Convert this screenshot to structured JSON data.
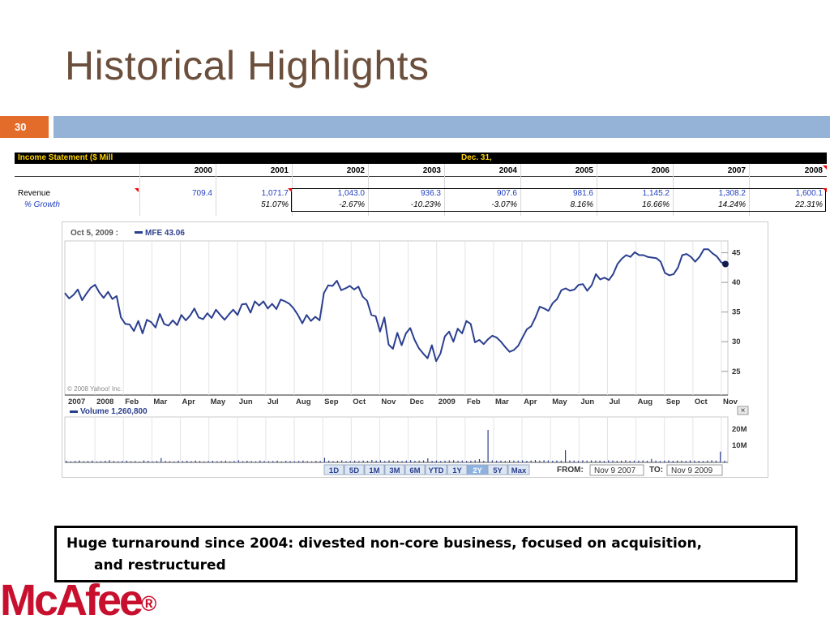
{
  "slide": {
    "title": "Historical Highlights",
    "page_number": "30"
  },
  "income_statement": {
    "header_label": "Income Statement ($ Mill",
    "period_label": "Dec. 31,",
    "years": [
      "2000",
      "2001",
      "2002",
      "2003",
      "2004",
      "2005",
      "2006",
      "2007",
      "2008"
    ],
    "revenue_label": "Revenue",
    "revenue": [
      "709.4",
      "1,071.7",
      "1,043.0",
      "936.3",
      "907.6",
      "981.6",
      "1,145.2",
      "1,308.2",
      "1,600.1"
    ],
    "growth_label": "% Growth",
    "growth": [
      "",
      "51.07%",
      "-2.67%",
      "-10.23%",
      "-3.07%",
      "8.16%",
      "16.66%",
      "14.24%",
      "22.31%"
    ]
  },
  "chart_data": {
    "type": "line",
    "title": "Oct 5, 2009 :",
    "series": [
      {
        "name": "MFE 43.06",
        "color": "#2b3f8f"
      }
    ],
    "price_series": {
      "x_start": "2007-11-09",
      "x_end": "2009-11-09",
      "y": [
        38.2,
        37.3,
        37.9,
        38.8,
        37.0,
        38.1,
        39.1,
        39.6,
        38.3,
        37.4,
        38.4,
        37.2,
        37.7,
        34.1,
        33.0,
        32.9,
        31.8,
        33.5,
        31.4,
        33.7,
        33.3,
        32.4,
        34.7,
        33.0,
        32.7,
        33.6,
        32.8,
        34.5,
        33.6,
        34.4,
        35.6,
        34.1,
        33.8,
        34.8,
        34.0,
        35.4,
        34.5,
        33.7,
        34.6,
        35.4,
        34.5,
        36.3,
        36.4,
        34.9,
        36.8,
        36.1,
        36.8,
        35.6,
        36.4,
        35.5,
        37.1,
        36.8,
        36.4,
        35.6,
        34.5,
        33.1,
        34.5,
        33.5,
        34.2,
        33.6,
        38.2,
        39.5,
        39.4,
        40.3,
        38.7,
        39.0,
        39.4,
        38.8,
        39.3,
        37.6,
        36.9,
        34.5,
        34.3,
        31.7,
        34.1,
        29.5,
        28.8,
        31.5,
        29.4,
        31.4,
        32.3,
        30.3,
        28.9,
        28.0,
        27.2,
        29.4,
        26.7,
        28.0,
        30.9,
        31.7,
        30.0,
        32.2,
        31.4,
        33.5,
        33.0,
        29.9,
        30.3,
        29.6,
        30.4,
        31.0,
        30.7,
        30.0,
        29.1,
        28.3,
        28.6,
        29.3,
        30.7,
        32.1,
        32.6,
        34.1,
        35.9,
        35.6,
        35.2,
        36.5,
        37.2,
        38.7,
        39.0,
        38.6,
        38.8,
        39.6,
        39.7,
        38.6,
        39.5,
        41.4,
        40.5,
        40.8,
        40.4,
        41.4,
        43.1,
        44.0,
        44.6,
        44.3,
        45.1,
        44.6,
        44.6,
        44.3,
        44.2,
        44.1,
        43.5,
        41.6,
        41.2,
        41.4,
        42.5,
        44.6,
        44.8,
        44.3,
        43.5,
        44.3,
        45.6,
        45.6,
        44.9,
        44.4,
        43.4,
        43.1
      ],
      "x_labels": [
        "2007",
        "2008",
        "Feb",
        "Mar",
        "Apr",
        "May",
        "Jun",
        "Jul",
        "Aug",
        "Sep",
        "Oct",
        "Nov",
        "Dec",
        "2009",
        "Feb",
        "Mar",
        "Apr",
        "May",
        "Jun",
        "Jul",
        "Aug",
        "Sep",
        "Oct",
        "Nov"
      ],
      "y_ticks": [
        25,
        30,
        35,
        40,
        45
      ],
      "ylim": [
        21,
        47
      ],
      "credit": "© 2008 Yahoo! Inc."
    },
    "volume_series": {
      "name": "Volume 1,260,800",
      "y_ticks": [
        "10M",
        "20M"
      ],
      "values": [
        1.2,
        0.8,
        1.1,
        1.4,
        0.9,
        1.0,
        1.3,
        0.7,
        0.9,
        1.2,
        1.6,
        1.0,
        0.8,
        1.1,
        1.3,
        0.9,
        1.0,
        0.6,
        1.5,
        1.2,
        0.8,
        1.0,
        3.2,
        1.1,
        0.9,
        0.7,
        1.3,
        1.0,
        1.2,
        0.9,
        1.4,
        1.1,
        0.8,
        1.0,
        1.2,
        0.9,
        1.1,
        1.3,
        0.8,
        1.0,
        1.6,
        0.9,
        1.2,
        1.0,
        0.8,
        1.4,
        1.1,
        0.9,
        1.0,
        1.3,
        0.7,
        1.2,
        1.0,
        0.9,
        1.1,
        1.4,
        1.0,
        0.8,
        1.2,
        1.1,
        3.5,
        1.3,
        1.0,
        1.2,
        1.5,
        0.9,
        1.1,
        1.3,
        1.0,
        1.4,
        1.2,
        1.8,
        1.3,
        1.6,
        1.1,
        1.5,
        1.3,
        1.2,
        1.0,
        1.4,
        1.7,
        1.2,
        1.3,
        1.5,
        3.0,
        1.2,
        1.4,
        1.1,
        1.3,
        1.5,
        1.6,
        1.2,
        1.4,
        1.1,
        1.3,
        1.6,
        2.4,
        1.2,
        24.0,
        1.5,
        1.3,
        1.4,
        1.2,
        1.6,
        1.4,
        1.3,
        1.5,
        1.2,
        1.4,
        1.8,
        1.3,
        1.6,
        1.5,
        1.2,
        1.4,
        1.3,
        9.0,
        1.5,
        1.4,
        1.2,
        1.6,
        1.3,
        1.5,
        1.4,
        1.3,
        1.1,
        1.5,
        1.4,
        1.2,
        1.3,
        1.6,
        1.2,
        1.4,
        1.3,
        1.5,
        1.2,
        2.6,
        1.4,
        1.1,
        1.3,
        1.5,
        1.2,
        1.4,
        1.3,
        1.1,
        1.5,
        1.3,
        1.2,
        1.0,
        1.4,
        1.6,
        1.3,
        8.0,
        1.3
      ]
    },
    "range_buttons": [
      "1D",
      "5D",
      "1M",
      "3M",
      "6M",
      "YTD",
      "1Y",
      "2Y",
      "5Y",
      "Max"
    ],
    "selected_range": "2Y",
    "from_label": "FROM:",
    "from_value": "Nov 9 2007",
    "to_label": "TO:",
    "to_value": "Nov 9 2009",
    "close_button": "×"
  },
  "callout": {
    "line1": "Huge turnaround since 2004: divested non-core business, focused on acquisition,",
    "line2": "and restructured"
  },
  "logo": {
    "text": "McAfee",
    "mark": "®",
    "color": "#c8102e"
  },
  "colors": {
    "title": "#6b4f3c",
    "accent_orange": "#e46c2a",
    "accent_blue": "#95b3d7",
    "line": "#2b3f8f"
  }
}
